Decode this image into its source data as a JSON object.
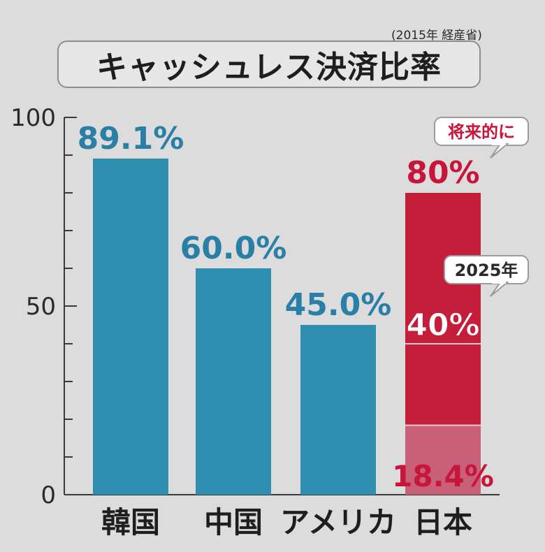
{
  "source_note": "(2015年 経産省)",
  "chart_data": {
    "type": "bar",
    "title": "キャッシュレス決済比率",
    "categories": [
      "韓国",
      "中国",
      "アメリカ",
      "日本"
    ],
    "values": [
      89.1,
      60.0,
      45.0,
      18.4
    ],
    "value_labels": [
      "89.1%",
      "60.0%",
      "45.0%",
      "18.4%"
    ],
    "ylim": [
      0,
      100
    ],
    "yticks": [
      0,
      50,
      100
    ],
    "y_minor_step": 10,
    "grid": false,
    "colors": {
      "bar": "#2f8db0",
      "bar_label": "#2a7fa6",
      "japan_current": "#c96079",
      "japan_target": "#c41e3a",
      "japan_label": "#c8153a"
    },
    "japan_targets": [
      {
        "callout": "2025年",
        "value": 40,
        "label": "40%"
      },
      {
        "callout": "将来的に",
        "value": 80,
        "label": "80%"
      }
    ]
  }
}
